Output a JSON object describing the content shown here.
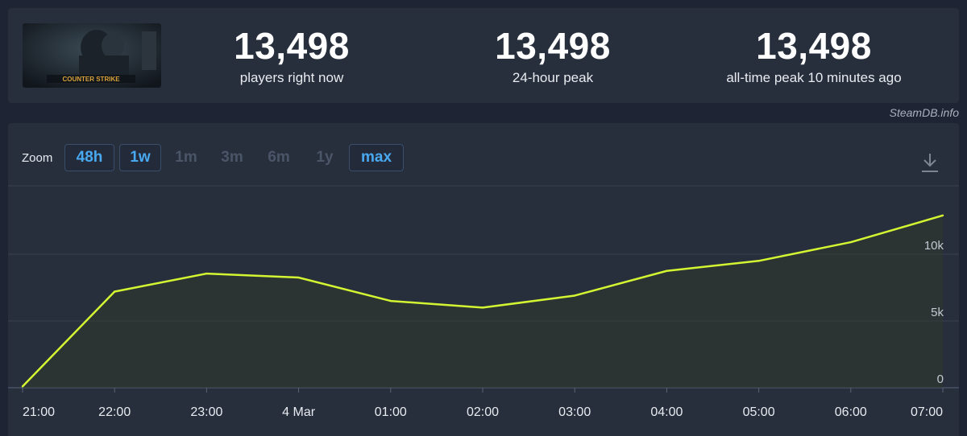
{
  "header": {
    "logo_icon": "counter-strike-logo",
    "logo_text": "COUNTER STRIKE",
    "stats": [
      {
        "value": "13,498",
        "label": "players right now"
      },
      {
        "value": "13,498",
        "label": "24-hour peak"
      },
      {
        "value": "13,498",
        "label": "all-time peak 10 minutes ago"
      }
    ]
  },
  "watermark": "SteamDB.info",
  "zoom": {
    "label": "Zoom",
    "options": [
      {
        "label": "48h",
        "active": true
      },
      {
        "label": "1w",
        "active": true
      },
      {
        "label": "1m",
        "active": false
      },
      {
        "label": "3m",
        "active": false
      },
      {
        "label": "6m",
        "active": false
      },
      {
        "label": "1y",
        "active": false
      },
      {
        "label": "max",
        "active": true
      }
    ],
    "download_icon": "download-icon"
  },
  "chart_data": {
    "type": "area",
    "x": [
      "21:00",
      "22:00",
      "23:00",
      "4 Mar",
      "01:00",
      "02:00",
      "03:00",
      "04:00",
      "05:00",
      "06:00",
      "07:00"
    ],
    "series": [
      {
        "values": [
          100,
          7200,
          8550,
          8250,
          6500,
          6000,
          6900,
          8750,
          9500,
          10900,
          12900
        ]
      }
    ],
    "yticks": [
      0,
      5000,
      10000
    ],
    "ytick_labels": [
      "0",
      "5k",
      "10k"
    ],
    "ylim": [
      0,
      15000
    ],
    "grid": true,
    "line_color": "#d4f531",
    "fill_color": "#2f3a2c",
    "xlabel": "",
    "ylabel": ""
  }
}
